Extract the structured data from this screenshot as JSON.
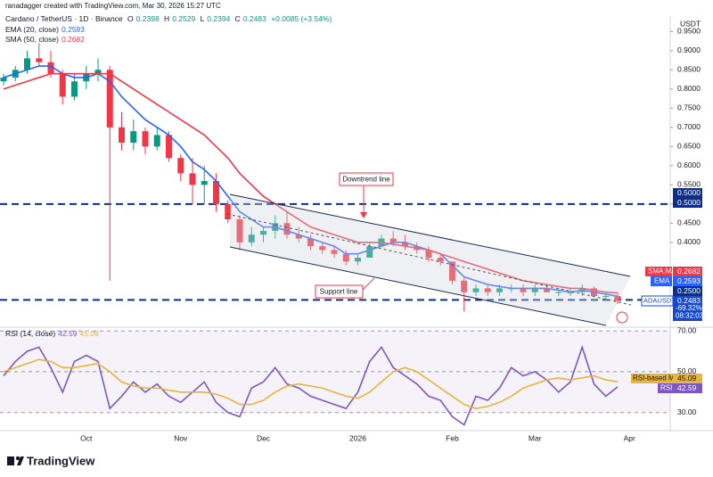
{
  "header": {
    "attribution": "ranadagger created with TradingView.com, Mar 30, 2026 15:27 UTC",
    "branding": "TradingView"
  },
  "chart_data": [
    {
      "type": "candlestick",
      "title": "Cardano / TetherUS · 1D · Binance",
      "unit": "USDT",
      "ohlc": [
        {
          "label": "O",
          "value": 0.2398
        },
        {
          "label": "H",
          "value": 0.2529
        },
        {
          "label": "L",
          "value": 0.2394
        },
        {
          "label": "C",
          "value": 0.2483
        }
      ],
      "change": "+0.0085 (+3.54%)",
      "symbol_badge": "ADAUSDT",
      "change_badge": "-69.32%",
      "countdown": "08:32:03",
      "annotations": [
        "Downtrend line",
        "Support line"
      ],
      "up_color": "#089981",
      "down_color": "#f23645",
      "categories": [
        null,
        null,
        null,
        null,
        null,
        null,
        null,
        "Oct",
        null,
        null,
        null,
        null,
        null,
        null,
        null,
        "Nov",
        null,
        null,
        null,
        null,
        null,
        null,
        "Dec",
        null,
        null,
        null,
        null,
        null,
        null,
        null,
        "2026",
        null,
        null,
        null,
        null,
        null,
        null,
        null,
        "Feb",
        null,
        null,
        null,
        null,
        null,
        null,
        "Mar",
        null,
        null,
        null,
        null,
        null,
        null,
        null,
        "Apr"
      ],
      "open": [
        0.82,
        0.83,
        0.85,
        0.88,
        0.87,
        0.84,
        0.78,
        0.82,
        0.84,
        0.85,
        0.7,
        0.66,
        0.69,
        0.65,
        0.68,
        0.62,
        0.58,
        0.55,
        0.56,
        0.5,
        0.46,
        0.4,
        0.42,
        0.43,
        0.45,
        0.42,
        0.41,
        0.39,
        0.38,
        0.37,
        0.35,
        0.36,
        0.39,
        0.41,
        0.4,
        0.39,
        0.38,
        0.36,
        0.35,
        0.3,
        0.27,
        0.28,
        0.27,
        0.28,
        0.28,
        0.27,
        0.28,
        0.27,
        0.27,
        0.27,
        0.28,
        0.26,
        0.26,
        null
      ],
      "high": [
        0.84,
        0.86,
        0.9,
        0.92,
        0.9,
        0.85,
        0.84,
        0.86,
        0.88,
        0.86,
        0.74,
        0.72,
        0.7,
        0.7,
        0.69,
        0.63,
        0.62,
        0.6,
        0.58,
        0.51,
        0.47,
        0.44,
        0.44,
        0.47,
        0.48,
        0.44,
        0.42,
        0.4,
        0.39,
        0.38,
        0.37,
        0.4,
        0.42,
        0.43,
        0.42,
        0.4,
        0.39,
        0.37,
        0.35,
        0.31,
        0.29,
        0.29,
        0.29,
        0.29,
        0.29,
        0.29,
        0.29,
        0.28,
        0.28,
        0.29,
        0.285,
        0.27,
        0.27,
        null
      ],
      "low": [
        0.81,
        0.82,
        0.84,
        0.86,
        0.83,
        0.76,
        0.77,
        0.8,
        0.82,
        0.3,
        0.64,
        0.64,
        0.63,
        0.64,
        0.61,
        0.56,
        0.5,
        0.5,
        0.48,
        0.45,
        0.38,
        0.39,
        0.4,
        0.41,
        0.41,
        0.4,
        0.38,
        0.37,
        0.36,
        0.34,
        0.34,
        0.36,
        0.39,
        0.39,
        0.38,
        0.37,
        0.35,
        0.34,
        0.29,
        0.22,
        0.26,
        0.26,
        0.26,
        0.27,
        0.26,
        0.26,
        0.27,
        0.26,
        0.26,
        0.26,
        0.26,
        0.25,
        0.2394,
        null
      ],
      "close": [
        0.83,
        0.85,
        0.88,
        0.87,
        0.84,
        0.78,
        0.82,
        0.84,
        0.85,
        0.7,
        0.66,
        0.69,
        0.65,
        0.68,
        0.62,
        0.58,
        0.55,
        0.56,
        0.5,
        0.46,
        0.4,
        0.42,
        0.43,
        0.45,
        0.42,
        0.41,
        0.39,
        0.38,
        0.37,
        0.35,
        0.36,
        0.39,
        0.41,
        0.4,
        0.39,
        0.38,
        0.36,
        0.35,
        0.3,
        0.27,
        0.28,
        0.27,
        0.28,
        0.28,
        0.27,
        0.28,
        0.27,
        0.27,
        0.27,
        0.28,
        0.26,
        0.26,
        0.2483,
        null
      ],
      "series": [
        {
          "name": "EMA (20, close)",
          "badge": "EMA",
          "color": "#2962ff",
          "values": [
            0.83,
            0.84,
            0.85,
            0.86,
            0.86,
            0.84,
            0.83,
            0.83,
            0.84,
            0.82,
            0.78,
            0.75,
            0.72,
            0.7,
            0.68,
            0.65,
            0.61,
            0.59,
            0.56,
            0.52,
            0.48,
            0.46,
            0.44,
            0.44,
            0.43,
            0.42,
            0.41,
            0.4,
            0.39,
            0.37,
            0.37,
            0.38,
            0.39,
            0.4,
            0.4,
            0.39,
            0.38,
            0.37,
            0.34,
            0.31,
            0.3,
            0.29,
            0.285,
            0.28,
            0.28,
            0.28,
            0.28,
            0.275,
            0.27,
            0.275,
            0.27,
            0.265,
            0.2593,
            null
          ]
        },
        {
          "name": "SMA (50, close)",
          "badge": "SMA:MA",
          "color": "#f23645",
          "values": [
            0.8,
            0.81,
            0.82,
            0.83,
            0.84,
            0.84,
            0.84,
            0.84,
            0.84,
            0.84,
            0.82,
            0.8,
            0.78,
            0.76,
            0.74,
            0.72,
            0.7,
            0.68,
            0.65,
            0.62,
            0.58,
            0.55,
            0.52,
            0.5,
            0.48,
            0.46,
            0.44,
            0.43,
            0.42,
            0.41,
            0.4,
            0.4,
            0.4,
            0.395,
            0.39,
            0.385,
            0.38,
            0.37,
            0.36,
            0.35,
            0.34,
            0.33,
            0.32,
            0.31,
            0.3,
            0.295,
            0.29,
            0.285,
            0.28,
            0.28,
            0.275,
            0.27,
            0.2682,
            null
          ]
        }
      ],
      "levels": [
        {
          "value": 0.5,
          "label": "0.5000"
        },
        {
          "value": 0.25,
          "label": "0.2500"
        }
      ],
      "ylim": [
        0.181,
        0.981
      ],
      "yticks": [
        {
          "value": 0.4,
          "label": "0.4000"
        },
        {
          "value": 0.45,
          "label": "0.4500"
        },
        {
          "value": 0.5,
          "label": "0.5000"
        },
        {
          "value": 0.55,
          "label": "0.5500"
        },
        {
          "value": 0.6,
          "label": "0.6000"
        },
        {
          "value": 0.65,
          "label": "0.6500"
        },
        {
          "value": 0.7,
          "label": "0.7000"
        },
        {
          "value": 0.75,
          "label": "0.7500"
        },
        {
          "value": 0.8,
          "label": "0.8000"
        },
        {
          "value": 0.85,
          "label": "0.8500"
        },
        {
          "value": 0.9,
          "label": "0.9000"
        },
        {
          "value": 0.95,
          "label": "0.9500"
        }
      ]
    },
    {
      "type": "line",
      "title": "RSI (14, close)",
      "series": [
        {
          "name": "RSI",
          "color": "#7e57c2",
          "values": [
            48,
            55,
            60,
            62,
            52,
            40,
            55,
            58,
            55,
            32,
            38,
            45,
            40,
            44,
            38,
            35,
            40,
            45,
            35,
            30,
            28,
            42,
            45,
            52,
            44,
            42,
            38,
            36,
            34,
            32,
            40,
            55,
            62,
            52,
            48,
            44,
            38,
            36,
            28,
            24,
            38,
            36,
            42,
            52,
            48,
            50,
            46,
            40,
            45,
            62,
            44,
            38,
            42.59,
            null
          ]
        },
        {
          "name": "RSI-based MA",
          "color": "#e8b43a",
          "values": [
            50,
            52,
            54,
            56,
            55,
            52,
            52,
            53,
            54,
            50,
            45,
            43,
            42,
            42,
            41,
            40,
            40,
            40,
            39,
            37,
            34,
            34,
            36,
            40,
            43,
            44,
            43,
            42,
            40,
            38,
            37,
            40,
            45,
            50,
            52,
            50,
            46,
            42,
            38,
            34,
            32,
            33,
            35,
            38,
            42,
            44,
            46,
            47,
            46,
            47,
            48,
            46,
            45.09,
            null
          ]
        }
      ],
      "band": [
        30,
        70
      ],
      "ylim": [
        21.6,
        70.9
      ],
      "yticks": [
        {
          "value": 30,
          "label": "30.00"
        },
        {
          "value": 50,
          "label": "50.00"
        },
        {
          "value": 70,
          "label": "70.00"
        }
      ]
    }
  ]
}
